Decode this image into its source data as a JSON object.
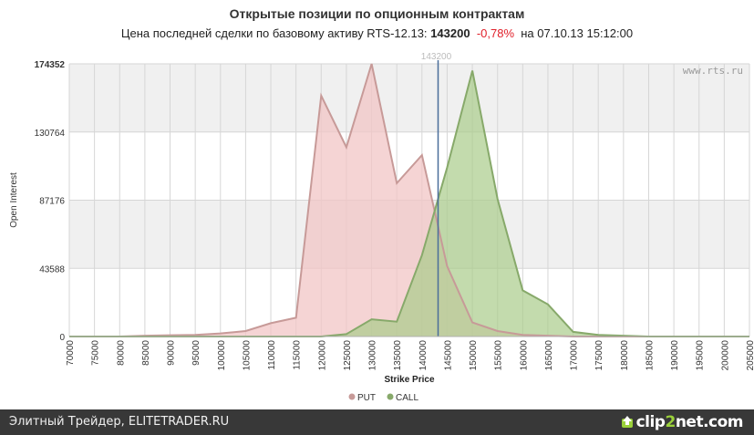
{
  "header": {
    "title": "Открытые позиции по опционным контрактам",
    "subtitle_prefix": "Цена последней сделки по базовому активу RTS-12.13:",
    "last_price": "143200",
    "change": "-0,78%",
    "subtitle_suffix": "на 07.10.13 15:12:00"
  },
  "watermark": "www.rts.ru",
  "price_marker_label": "143200",
  "footer": {
    "text": "Элитный Трейдер, ELITETRADER.RU",
    "logo_a": "clip",
    "logo_b": "2",
    "logo_c": "net.com"
  },
  "colors": {
    "put_line": "#c79a98",
    "put_fill": "#f2c5c5",
    "call_line": "#87a96a",
    "call_fill": "#a9cc8a",
    "price_line": "#4a6d9a",
    "band": "#f0f0f0",
    "grid": "#d6d6d6"
  },
  "chart_data": {
    "type": "area",
    "xlabel": "Strike Price",
    "ylabel": "Open Interest",
    "x": [
      70000,
      75000,
      80000,
      85000,
      90000,
      95000,
      100000,
      105000,
      110000,
      115000,
      120000,
      125000,
      130000,
      135000,
      140000,
      145000,
      150000,
      155000,
      160000,
      165000,
      170000,
      175000,
      180000,
      185000,
      190000,
      195000,
      200000,
      205000
    ],
    "xlim": [
      70000,
      205000
    ],
    "ylim": [
      0,
      174352
    ],
    "yticks": [
      0,
      43588,
      87176,
      130764,
      174352
    ],
    "price_marker": 143200,
    "legend_position": "bottom-center",
    "series": [
      {
        "name": "PUT",
        "values": [
          0,
          0,
          0,
          500,
          800,
          1000,
          2000,
          3500,
          8500,
          12000,
          154000,
          121000,
          174352,
          98000,
          116000,
          45000,
          9000,
          3500,
          1000,
          500,
          0,
          0,
          0,
          0,
          0,
          0,
          0,
          0
        ]
      },
      {
        "name": "CALL",
        "values": [
          0,
          0,
          0,
          0,
          0,
          0,
          0,
          0,
          0,
          0,
          0,
          1500,
          11000,
          9500,
          52000,
          108000,
          170000,
          88000,
          29500,
          20500,
          3000,
          1000,
          500,
          0,
          0,
          0,
          0,
          0
        ]
      }
    ]
  }
}
